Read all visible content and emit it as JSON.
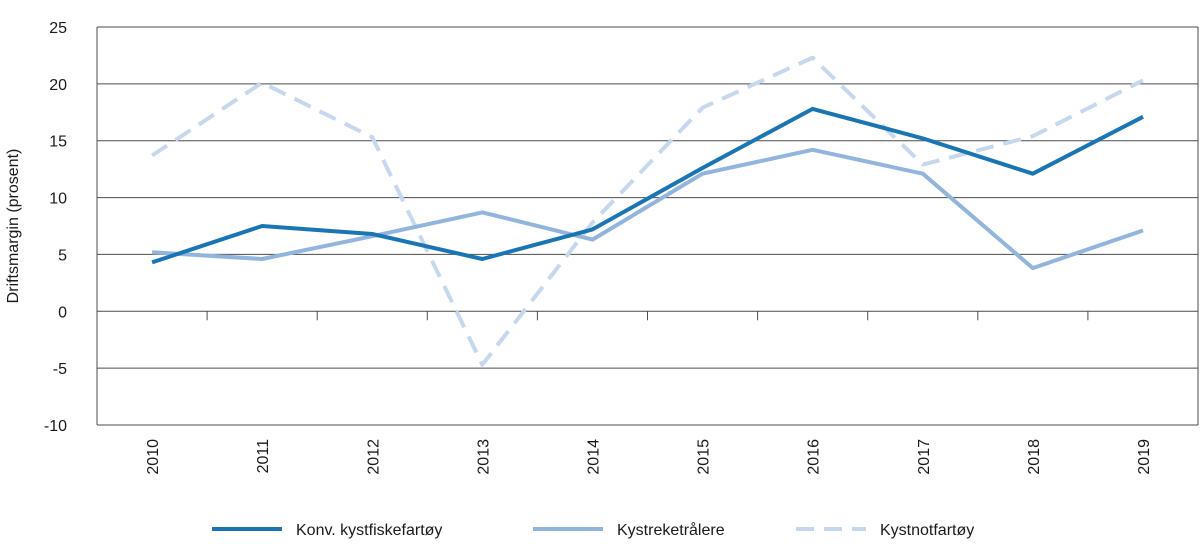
{
  "chart_data": {
    "type": "line",
    "title": "",
    "xlabel": "",
    "ylabel": "Driftsmargin (prosent)",
    "categories": [
      "2010",
      "2011",
      "2012",
      "2013",
      "2014",
      "2015",
      "2016",
      "2017",
      "2018",
      "2019"
    ],
    "y_ticks": [
      "25",
      "20",
      "15",
      "10",
      "5",
      "0",
      "-5",
      "-10"
    ],
    "ylim": [
      -10,
      25
    ],
    "grid": true,
    "legend_position": "bottom",
    "series": [
      {
        "name": "Konv. kystfiskefartøy",
        "color": "#1a75b5",
        "dash": "solid",
        "values": [
          4.3,
          7.5,
          6.8,
          4.6,
          7.2,
          12.6,
          17.8,
          15.2,
          12.1,
          17.1
        ]
      },
      {
        "name": "Kystreketrålere",
        "color": "#92b5dd",
        "dash": "solid",
        "values": [
          5.2,
          4.6,
          6.6,
          8.7,
          6.3,
          12.1,
          14.2,
          12.1,
          3.8,
          7.1
        ]
      },
      {
        "name": "Kystnotfartøy",
        "color": "#c6d8ed",
        "dash": "dashed",
        "values": [
          13.7,
          20.1,
          15.3,
          -4.7,
          7.8,
          17.9,
          22.3,
          12.9,
          15.4,
          20.3
        ]
      }
    ]
  }
}
